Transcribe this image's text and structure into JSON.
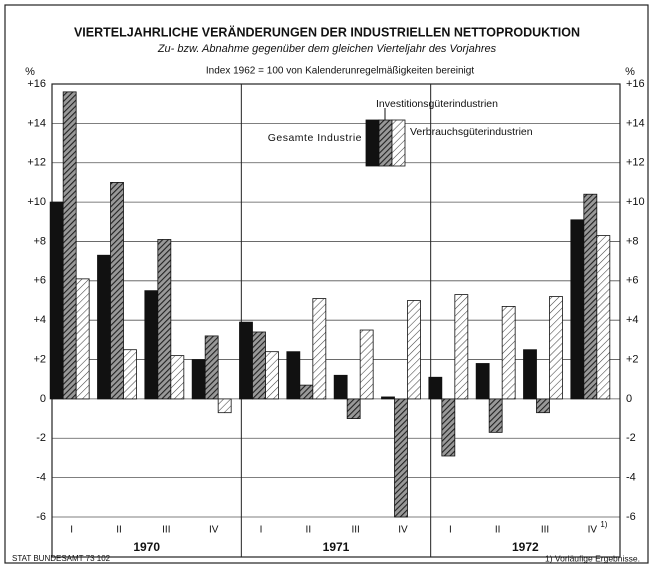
{
  "chart_data": {
    "type": "bar",
    "title": "VIERTELJAHRLICHE VERÄNDERUNGEN DER INDUSTRIELLEN NETTOPRODUKTION",
    "subtitle": "Zu- bzw. Abnahme gegenüber dem gleichen Vierteljahr des Vorjahres",
    "note": "Index 1962 = 100 von Kalenderunregelmäßigkeiten bereinigt",
    "y_unit": "%",
    "categories": [
      "I",
      "II",
      "III",
      "IV",
      "I",
      "II",
      "III",
      "IV",
      "I",
      "II",
      "III",
      "IV"
    ],
    "footnote_marker": "1)",
    "years": [
      "1970",
      "1971",
      "1972"
    ],
    "series": [
      {
        "name": "Gesamte Industrie",
        "color": "#111111",
        "hatch": "none",
        "values": [
          10,
          7.3,
          5.5,
          2.0,
          3.9,
          2.4,
          1.2,
          0.1,
          1.1,
          1.8,
          2.5,
          9.1
        ]
      },
      {
        "name": "Investitionsgüterindustrien",
        "color": "#333333",
        "hatch": "dense",
        "values": [
          15.6,
          11,
          8.1,
          3.2,
          3.4,
          0.7,
          -1.0,
          -6.0,
          -2.9,
          -1.7,
          -0.7,
          10.4
        ]
      },
      {
        "name": "Verbrauchsgüterindustrien",
        "color": "#555555",
        "hatch": "sparse",
        "values": [
          6.1,
          2.5,
          2.2,
          -0.7,
          2.4,
          5.1,
          3.5,
          5.0,
          5.3,
          4.7,
          5.2,
          8.3
        ]
      }
    ],
    "ylim": [
      -6,
      16
    ],
    "yticks": [
      {
        "value": 16,
        "label": "+16"
      },
      {
        "value": 14,
        "label": "+14"
      },
      {
        "value": 12,
        "label": "+12"
      },
      {
        "value": 10,
        "label": "+10"
      },
      {
        "value": 8,
        "label": "+8"
      },
      {
        "value": 6,
        "label": "+6"
      },
      {
        "value": 4,
        "label": "+4"
      },
      {
        "value": 2,
        "label": "+2"
      },
      0,
      -2,
      -4,
      -6
    ],
    "grid": true,
    "source": "STAT BUNDESAMT 73 102",
    "footnote": "1) Vorläufige Ergebnisse."
  }
}
